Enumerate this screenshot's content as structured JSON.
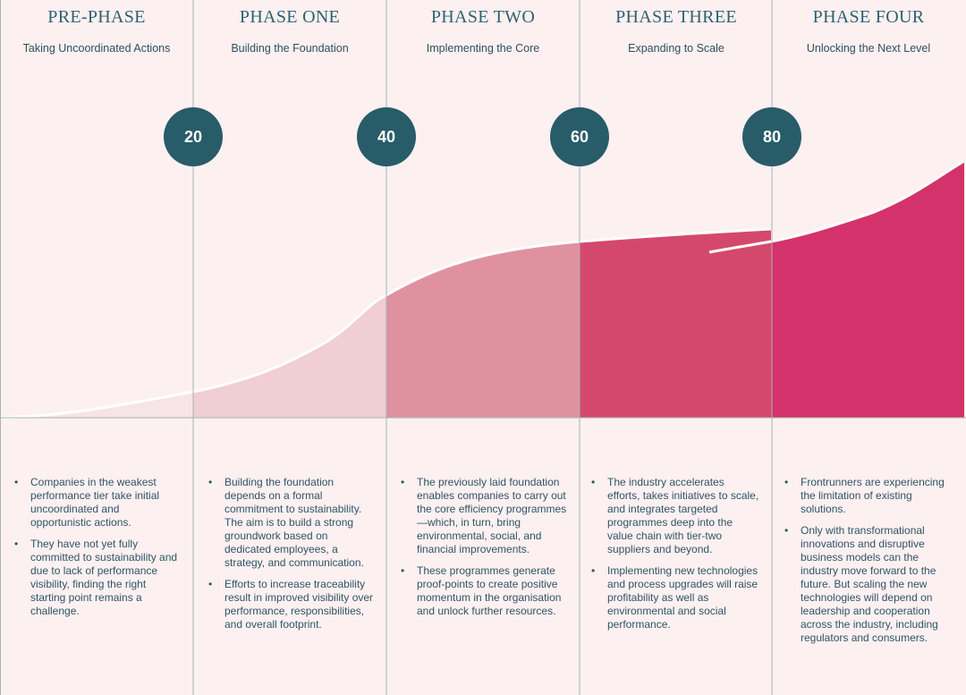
{
  "phases": [
    {
      "title": "PRE-PHASE",
      "subtitle": "Taking Uncoordinated Actions",
      "bullets": [
        "Companies in the weakest performance tier take initial uncoordinated and opportunistic actions.",
        "They have not yet fully committed to sustainability and due to lack of performance visibility, finding the right starting point remains a challenge."
      ]
    },
    {
      "title": "PHASE ONE",
      "subtitle": "Building the Foundation",
      "bullets": [
        "Building the foundation depends on a formal commitment to sustainability. The aim is to build a strong groundwork based on dedicated employees, a strategy, and communication.",
        "Efforts to increase traceability result in improved visibility over performance, responsibilities, and overall footprint."
      ]
    },
    {
      "title": "PHASE TWO",
      "subtitle": "Implementing the Core",
      "bullets": [
        "The previously laid foundation enables companies to carry out the core efficiency programmes—which, in turn, bring environmental, social, and financial improvements.",
        "These programmes generate proof-points to create positive momentum in the organisation and unlock further resources."
      ]
    },
    {
      "title": "PHASE THREE",
      "subtitle": "Expanding to Scale",
      "bullets": [
        "The industry accelerates efforts, takes initiatives to scale, and integrates targeted programmes deep into the value chain with tier-two suppliers and beyond.",
        "Implementing new technologies and process upgrades will raise profitability as well as environmental and social performance."
      ]
    },
    {
      "title": "PHASE FOUR",
      "subtitle": "Unlocking the Next Level",
      "bullets": [
        "Frontrunners are experiencing the limitation of existing solutions.",
        "Only with transformational innovations and disruptive business models can the industry move forward to the future. But scaling the new technologies will depend on leadership and cooperation across the industry, including regulators and consumers."
      ]
    }
  ],
  "thresholds": [
    "20",
    "40",
    "60",
    "80"
  ],
  "colors": {
    "background": "#fcf0f1",
    "badge": "#275c68",
    "title": "#2f6172",
    "fills": [
      "#f6e4e6",
      "#f0ced3",
      "#e091a0",
      "#d5486d",
      "#d3336a"
    ],
    "divider": "#a9b2b6"
  }
}
